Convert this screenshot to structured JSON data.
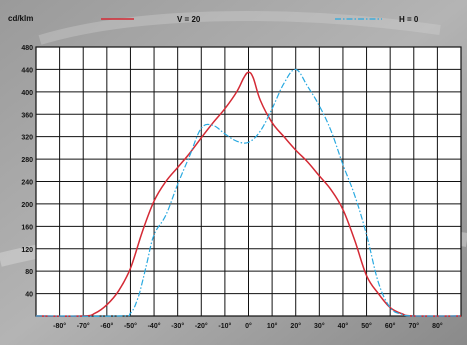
{
  "chart_data": {
    "type": "line",
    "unit_label": "cd/klm",
    "xlim": [
      -90,
      90
    ],
    "ylim": [
      0,
      480
    ],
    "x_ticks": [
      -80,
      -70,
      -60,
      -50,
      -40,
      -30,
      -20,
      -10,
      0,
      10,
      20,
      30,
      40,
      50,
      60,
      70,
      80
    ],
    "x_tick_labels": [
      "-80°",
      "-70°",
      "-60°",
      "-50°",
      "-40°",
      "-30°",
      "-20°",
      "-10°",
      "0°",
      "10°",
      "20°",
      "30°",
      "40°",
      "50°",
      "60°",
      "70°",
      "80°"
    ],
    "y_ticks": [
      40,
      80,
      120,
      160,
      200,
      240,
      280,
      320,
      360,
      400,
      440,
      480
    ],
    "y_tick_labels": [
      "40",
      "80",
      "120",
      "160",
      "200",
      "240",
      "280",
      "320",
      "360",
      "400",
      "440",
      "480"
    ],
    "grid": true,
    "legend_position": "top",
    "series": [
      {
        "name": "V = 20",
        "color": "#d42a35",
        "dash": "solid",
        "x": [
          -90,
          -70,
          -65,
          -60,
          -55,
          -50,
          -45,
          -40,
          -35,
          -30,
          -25,
          -20,
          -15,
          -10,
          -5,
          -2,
          0,
          2,
          5,
          10,
          15,
          20,
          25,
          30,
          35,
          40,
          45,
          50,
          55,
          60,
          65,
          70,
          90
        ],
        "y": [
          0,
          0,
          5,
          20,
          45,
          85,
          150,
          205,
          240,
          265,
          290,
          318,
          345,
          370,
          400,
          425,
          435,
          425,
          385,
          345,
          320,
          296,
          275,
          250,
          225,
          190,
          135,
          72,
          40,
          15,
          4,
          0,
          0
        ]
      },
      {
        "name": "H = 0",
        "color": "#29a9e0",
        "dash": "dashdot",
        "x": [
          -90,
          -55,
          -50,
          -47,
          -45,
          -43,
          -40,
          -35,
          -30,
          -25,
          -20,
          -15,
          -10,
          -5,
          0,
          5,
          10,
          15,
          20,
          25,
          30,
          35,
          40,
          45,
          50,
          55,
          60,
          65,
          70,
          90
        ],
        "y": [
          0,
          0,
          5,
          30,
          60,
          95,
          145,
          180,
          235,
          285,
          335,
          340,
          325,
          312,
          310,
          330,
          370,
          415,
          440,
          410,
          375,
          330,
          270,
          215,
          145,
          60,
          15,
          3,
          0,
          0
        ]
      }
    ]
  }
}
